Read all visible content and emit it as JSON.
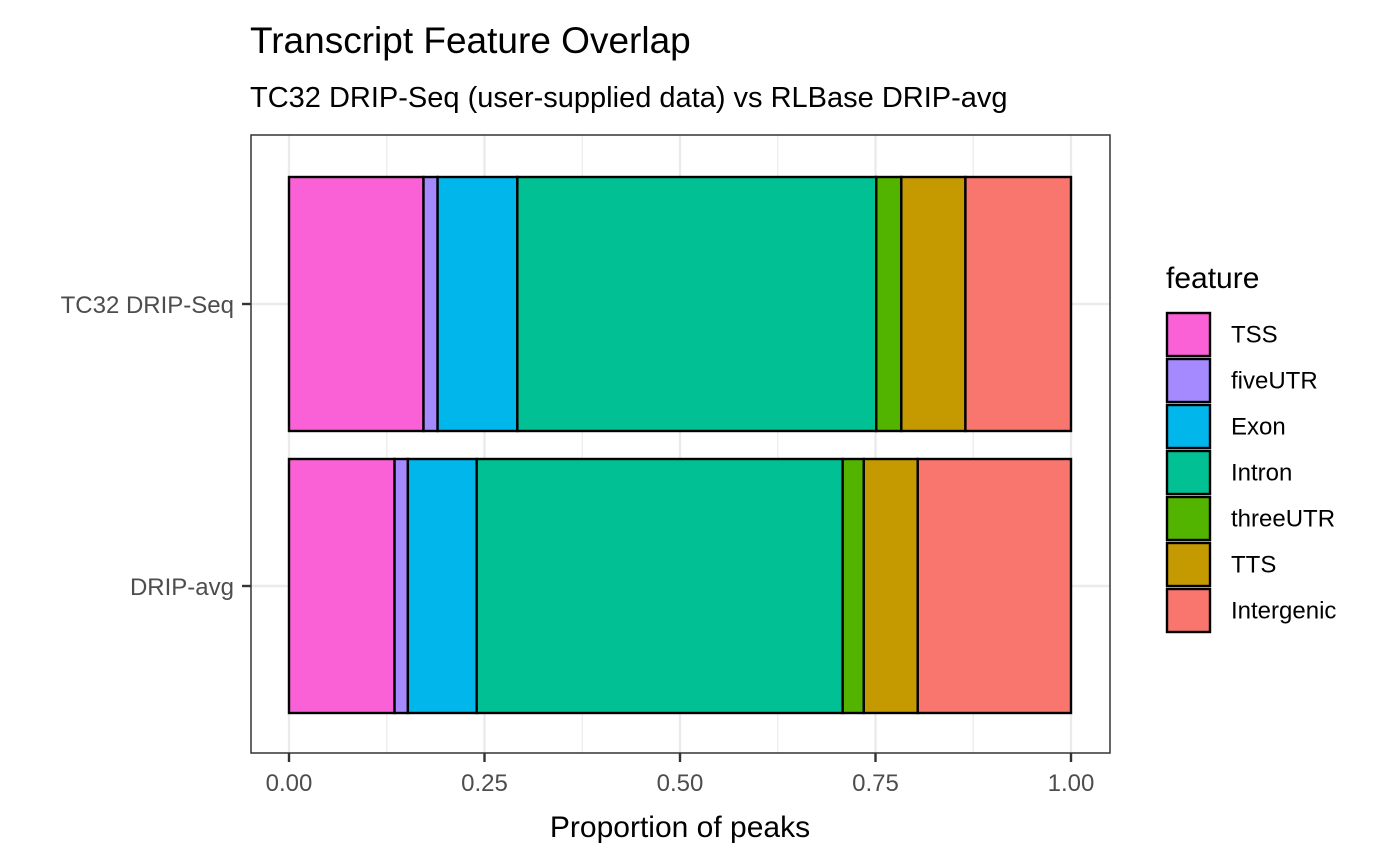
{
  "chart_data": {
    "type": "bar",
    "orientation": "horizontal",
    "stacked": true,
    "title": "Transcript Feature Overlap",
    "subtitle": "TC32 DRIP-Seq (user-supplied data) vs RLBase DRIP-avg",
    "xlabel": "Proportion of peaks",
    "ylabel": "",
    "xlim": [
      0,
      1
    ],
    "x_ticks": [
      "0.00",
      "0.25",
      "0.50",
      "0.75",
      "1.00"
    ],
    "x_tick_values": [
      0,
      0.25,
      0.5,
      0.75,
      1
    ],
    "grid": true,
    "legend_position": "right",
    "legend_title": "feature",
    "categories": [
      "TC32 DRIP-Seq",
      "DRIP-avg"
    ],
    "series": [
      {
        "name": "TSS",
        "color": "#FB61D7",
        "values": [
          0.172,
          0.135
        ]
      },
      {
        "name": "fiveUTR",
        "color": "#A58AFF",
        "values": [
          0.018,
          0.017
        ]
      },
      {
        "name": "Exon",
        "color": "#00B6EB",
        "values": [
          0.102,
          0.088
        ]
      },
      {
        "name": "Intron",
        "color": "#00C094",
        "values": [
          0.459,
          0.468
        ]
      },
      {
        "name": "threeUTR",
        "color": "#53B400",
        "values": [
          0.032,
          0.027
        ]
      },
      {
        "name": "TTS",
        "color": "#C49A00",
        "values": [
          0.082,
          0.069
        ]
      },
      {
        "name": "Intergenic",
        "color": "#F8766D",
        "values": [
          0.135,
          0.196
        ]
      }
    ]
  }
}
